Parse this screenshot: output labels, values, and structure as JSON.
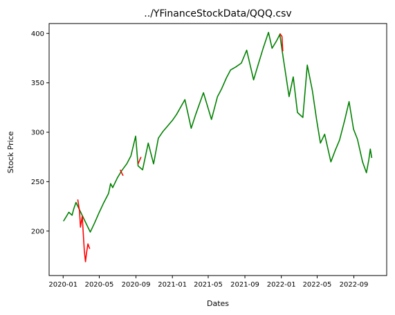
{
  "chart_data": {
    "type": "line",
    "title": "../YFinanceStockData/QQQ.csv",
    "xlabel": "Dates",
    "ylabel": "Stock Price",
    "xlim": [
      "2019-11-15",
      "2022-12-20"
    ],
    "ylim": [
      155,
      410
    ],
    "x_ticks": [
      "2020-01",
      "2020-05",
      "2020-09",
      "2021-01",
      "2021-05",
      "2021-09",
      "2022-01",
      "2022-05",
      "2022-09"
    ],
    "y_ticks": [
      200,
      250,
      300,
      350,
      400
    ],
    "grid": false,
    "series": [
      {
        "color": "#008000",
        "values": [
          [
            "2020-01-02",
            210
          ],
          [
            "2020-01-10",
            214
          ],
          [
            "2020-01-20",
            219
          ],
          [
            "2020-01-31",
            216
          ],
          [
            "2020-02-05",
            222
          ],
          [
            "2020-02-13",
            229
          ],
          [
            "2020-04-01",
            199
          ],
          [
            "2020-04-15",
            208
          ],
          [
            "2020-05-01",
            219
          ],
          [
            "2020-05-15",
            228
          ],
          [
            "2020-06-01",
            238
          ],
          [
            "2020-06-08",
            248
          ],
          [
            "2020-06-15",
            244
          ],
          [
            "2020-07-01",
            254
          ],
          [
            "2020-07-15",
            261
          ],
          [
            "2020-08-01",
            268
          ],
          [
            "2020-08-15",
            276
          ],
          [
            "2020-08-31",
            296
          ],
          [
            "2020-09-08",
            266
          ],
          [
            "2020-09-23",
            262
          ],
          [
            "2020-10-12",
            289
          ],
          [
            "2020-10-30",
            268
          ],
          [
            "2020-11-15",
            294
          ],
          [
            "2020-12-01",
            301
          ],
          [
            "2020-12-15",
            306
          ],
          [
            "2021-01-01",
            312
          ],
          [
            "2021-01-15",
            318
          ],
          [
            "2021-02-12",
            333
          ],
          [
            "2021-03-05",
            304
          ],
          [
            "2021-03-20",
            318
          ],
          [
            "2021-04-15",
            340
          ],
          [
            "2021-05-12",
            313
          ],
          [
            "2021-06-01",
            336
          ],
          [
            "2021-06-15",
            344
          ],
          [
            "2021-07-01",
            355
          ],
          [
            "2021-07-15",
            363
          ],
          [
            "2021-08-01",
            366
          ],
          [
            "2021-08-20",
            370
          ],
          [
            "2021-09-07",
            383
          ],
          [
            "2021-09-30",
            353
          ],
          [
            "2021-10-15",
            368
          ],
          [
            "2021-11-01",
            385
          ],
          [
            "2021-11-19",
            401
          ],
          [
            "2021-12-01",
            385
          ],
          [
            "2021-12-15",
            392
          ],
          [
            "2021-12-27",
            399
          ],
          [
            "2022-01-05",
            380
          ],
          [
            "2022-01-27",
            336
          ],
          [
            "2022-02-10",
            356
          ],
          [
            "2022-02-24",
            320
          ],
          [
            "2022-03-14",
            315
          ],
          [
            "2022-03-29",
            368
          ],
          [
            "2022-04-15",
            342
          ],
          [
            "2022-04-29",
            313
          ],
          [
            "2022-05-12",
            289
          ],
          [
            "2022-05-26",
            298
          ],
          [
            "2022-06-16",
            270
          ],
          [
            "2022-07-01",
            282
          ],
          [
            "2022-07-15",
            292
          ],
          [
            "2022-08-01",
            312
          ],
          [
            "2022-08-16",
            331
          ],
          [
            "2022-08-31",
            303
          ],
          [
            "2022-09-13",
            293
          ],
          [
            "2022-09-30",
            270
          ],
          [
            "2022-10-13",
            259
          ],
          [
            "2022-10-21",
            272
          ],
          [
            "2022-10-26",
            283
          ],
          [
            "2022-10-31",
            274
          ]
        ]
      },
      {
        "color": "#ff0000",
        "values": [
          [
            "2020-02-19",
            232
          ],
          [
            "2020-02-25",
            220
          ],
          [
            "2020-02-28",
            204
          ],
          [
            "2020-03-05",
            215
          ],
          [
            "2020-03-09",
            195
          ],
          [
            "2020-03-12",
            180
          ],
          [
            "2020-03-16",
            169
          ],
          [
            "2020-03-19",
            177
          ],
          [
            "2020-03-24",
            187
          ],
          [
            "2020-03-30",
            182
          ]
        ]
      },
      {
        "color": "#ff0000",
        "values": [
          [
            "2020-07-10",
            262
          ],
          [
            "2020-07-20",
            256
          ]
        ]
      },
      {
        "color": "#ff0000",
        "values": [
          [
            "2020-09-08",
            268
          ],
          [
            "2020-09-18",
            275
          ]
        ]
      },
      {
        "color": "#ff0000",
        "values": [
          [
            "2021-12-27",
            400
          ],
          [
            "2022-01-03",
            397
          ],
          [
            "2022-01-06",
            382
          ]
        ]
      }
    ]
  }
}
